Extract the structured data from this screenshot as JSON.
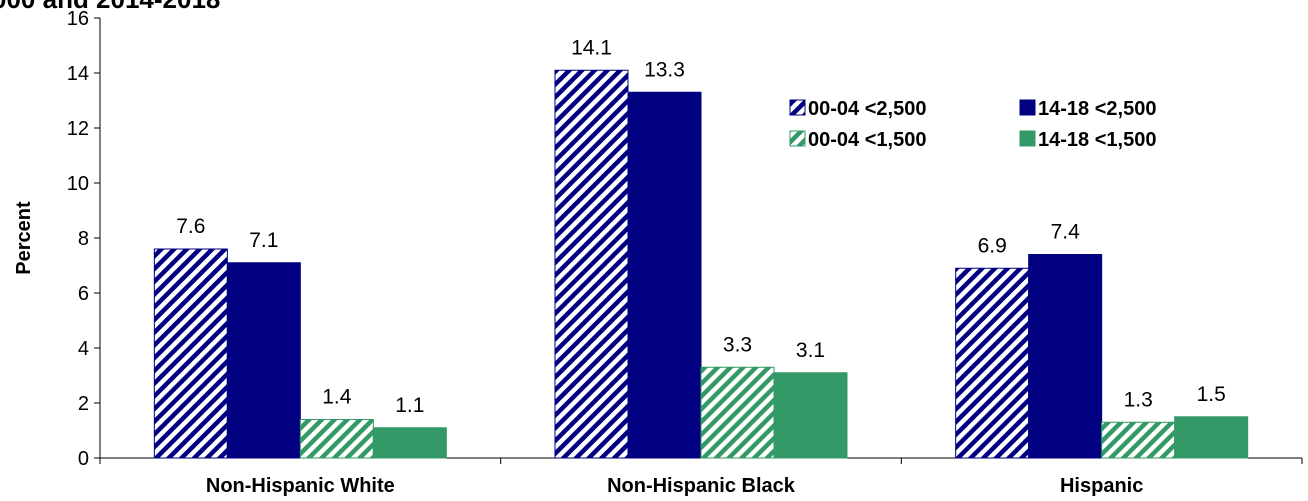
{
  "chart_data": {
    "type": "bar",
    "title": "000 and 2014-2018",
    "ylabel": "Percent",
    "xlabel": "",
    "ylim": [
      0,
      16
    ],
    "yticks": [
      0,
      2,
      4,
      6,
      8,
      10,
      12,
      14,
      16
    ],
    "grid": false,
    "legend_position": "top-right",
    "categories": [
      "Non-Hispanic White",
      "Non-Hispanic Black",
      "Hispanic"
    ],
    "series": [
      {
        "name": "00-04 <2,500",
        "values": [
          7.6,
          14.1,
          6.9
        ],
        "labels": [
          "7.6",
          "14.1",
          "6.9"
        ],
        "color": "#000080",
        "pattern": "hatched"
      },
      {
        "name": "14-18 <2,500",
        "values": [
          7.1,
          13.3,
          7.4
        ],
        "labels": [
          "7.1",
          "13.3",
          "7.4"
        ],
        "color": "#000080",
        "pattern": "solid"
      },
      {
        "name": "00-04 <1,500",
        "values": [
          1.4,
          3.3,
          1.3
        ],
        "labels": [
          "1.4",
          "3.3",
          "1.3"
        ],
        "color": "#339966",
        "pattern": "hatched"
      },
      {
        "name": "14-18 <1,500",
        "values": [
          1.1,
          3.1,
          1.5
        ],
        "labels": [
          "1.1",
          "3.1",
          "1.5"
        ],
        "color": "#339966",
        "pattern": "solid"
      }
    ]
  }
}
